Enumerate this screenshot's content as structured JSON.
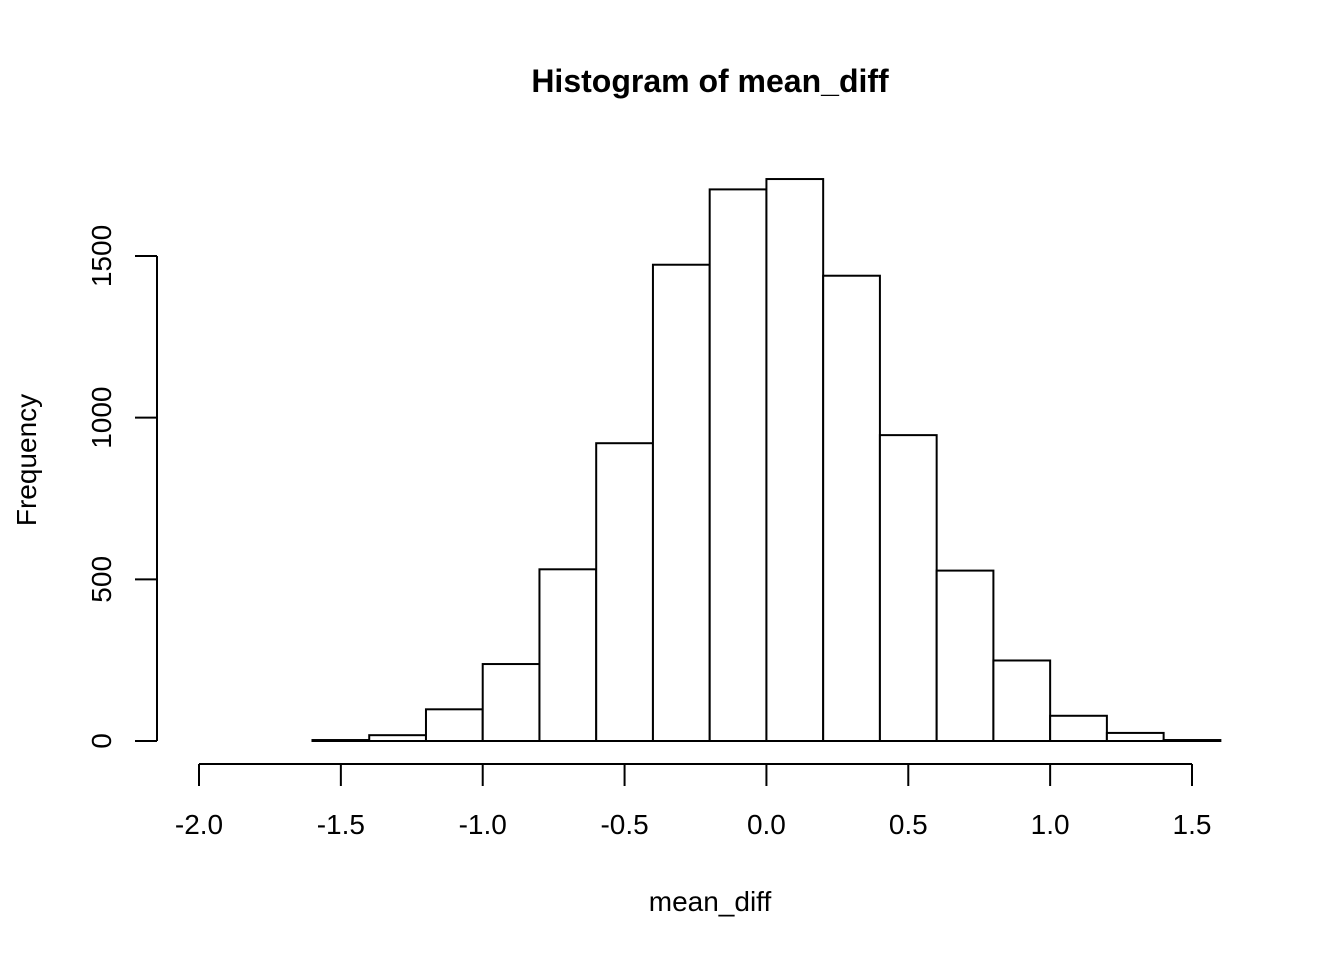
{
  "chart_data": {
    "type": "bar",
    "title": "Histogram of mean_diff",
    "xlabel": "mean_diff",
    "ylabel": "Frequency",
    "bin_edges": [
      -2.0,
      -1.8,
      -1.6,
      -1.4,
      -1.2,
      -1.0,
      -0.8,
      -0.6,
      -0.4,
      -0.2,
      0.0,
      0.2,
      0.4,
      0.6,
      0.8,
      1.0,
      1.2,
      1.4,
      1.6
    ],
    "values": [
      0,
      0,
      3,
      18,
      98,
      238,
      531,
      921,
      1473,
      1706,
      1738,
      1439,
      946,
      527,
      249,
      78,
      25,
      3
    ],
    "x_ticks": [
      "-2.0",
      "-1.5",
      "-1.0",
      "-0.5",
      "0.0",
      "0.5",
      "1.0",
      "1.5"
    ],
    "x_tick_values": [
      -2.0,
      -1.5,
      -1.0,
      -0.5,
      0.0,
      0.5,
      1.0,
      1.5
    ],
    "y_ticks": [
      "0",
      "500",
      "1000",
      "1500"
    ],
    "y_tick_values": [
      0,
      500,
      1000,
      1500
    ],
    "xlim": [
      -2.0,
      1.6
    ],
    "ylim": [
      0,
      1738
    ],
    "grid": false,
    "fill_color": "#ffffff",
    "stroke_color": "#000000"
  }
}
